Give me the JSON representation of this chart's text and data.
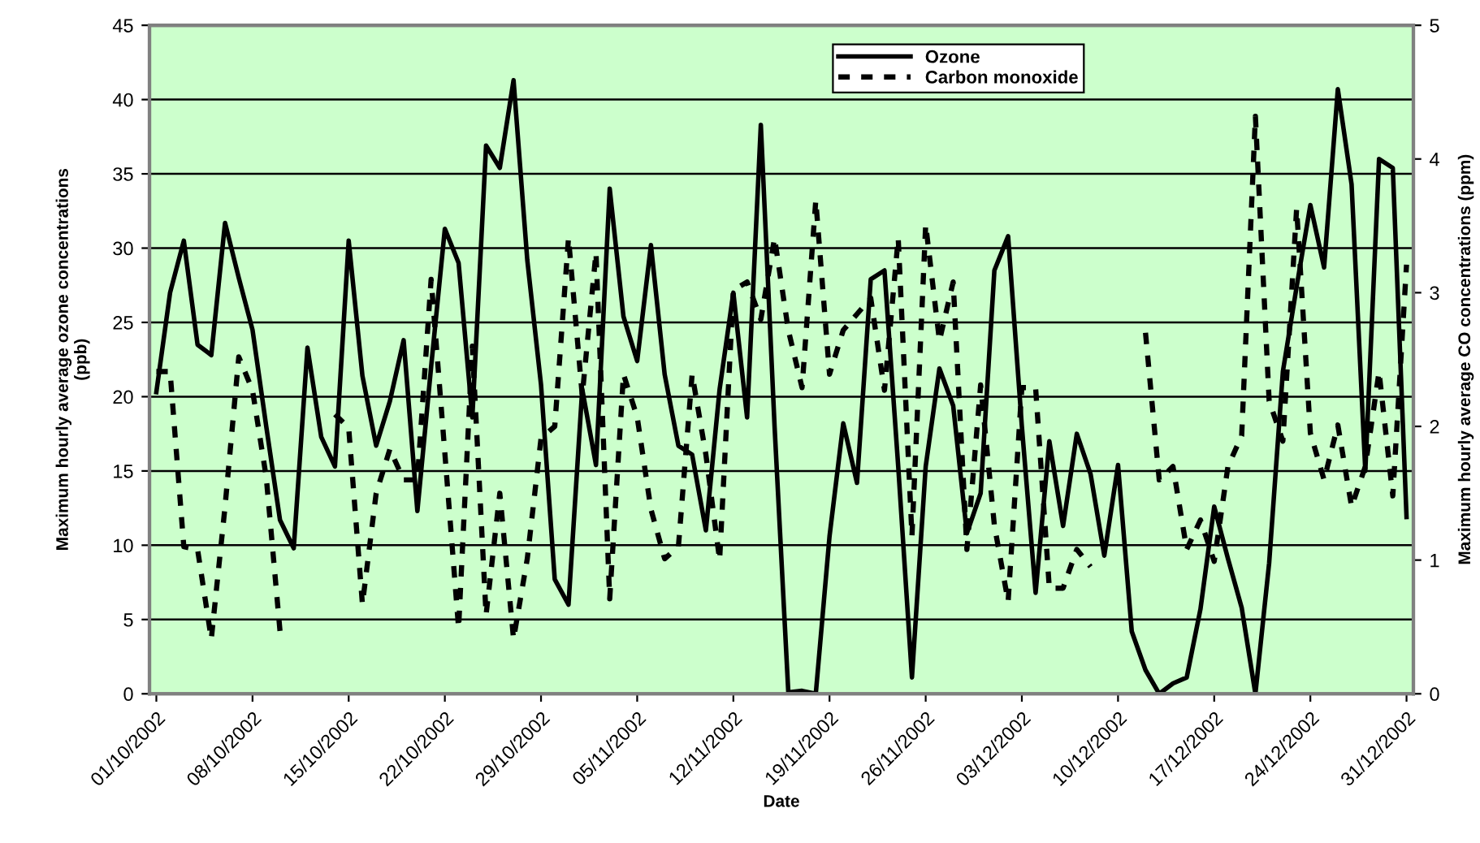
{
  "chart_data": {
    "type": "line",
    "xlabel": "Date",
    "ylabel": "Maximum hourly average ozone concentrations\n(ppb)",
    "y2label": "Maximum hourly average CO concentrations (ppm)",
    "x": [
      "2002-10-01",
      "2002-10-02",
      "2002-10-03",
      "2002-10-04",
      "2002-10-05",
      "2002-10-06",
      "2002-10-07",
      "2002-10-08",
      "2002-10-09",
      "2002-10-10",
      "2002-10-11",
      "2002-10-12",
      "2002-10-13",
      "2002-10-14",
      "2002-10-15",
      "2002-10-16",
      "2002-10-17",
      "2002-10-18",
      "2002-10-19",
      "2002-10-20",
      "2002-10-21",
      "2002-10-22",
      "2002-10-23",
      "2002-10-24",
      "2002-10-25",
      "2002-10-26",
      "2002-10-27",
      "2002-10-28",
      "2002-10-29",
      "2002-10-30",
      "2002-10-31",
      "2002-11-01",
      "2002-11-02",
      "2002-11-03",
      "2002-11-04",
      "2002-11-05",
      "2002-11-06",
      "2002-11-07",
      "2002-11-08",
      "2002-11-09",
      "2002-11-10",
      "2002-11-11",
      "2002-11-12",
      "2002-11-13",
      "2002-11-14",
      "2002-11-15",
      "2002-11-16",
      "2002-11-17",
      "2002-11-18",
      "2002-11-19",
      "2002-11-20",
      "2002-11-21",
      "2002-11-22",
      "2002-11-23",
      "2002-11-24",
      "2002-11-25",
      "2002-11-26",
      "2002-11-27",
      "2002-11-28",
      "2002-11-29",
      "2002-11-30",
      "2002-12-01",
      "2002-12-02",
      "2002-12-03",
      "2002-12-04",
      "2002-12-05",
      "2002-12-06",
      "2002-12-07",
      "2002-12-08",
      "2002-12-09",
      "2002-12-10",
      "2002-12-11",
      "2002-12-12",
      "2002-12-13",
      "2002-12-14",
      "2002-12-15",
      "2002-12-16",
      "2002-12-17",
      "2002-12-18",
      "2002-12-19",
      "2002-12-20",
      "2002-12-21",
      "2002-12-22",
      "2002-12-23",
      "2002-12-24",
      "2002-12-25",
      "2002-12-26",
      "2002-12-27",
      "2002-12-28",
      "2002-12-29",
      "2002-12-30",
      "2002-12-31"
    ],
    "series": [
      {
        "name": "Ozone",
        "color": "#000000",
        "line_style": "solid",
        "values": [
          20.3,
          27.0,
          30.5,
          23.5,
          22.8,
          31.7,
          28.0,
          24.5,
          18.0,
          11.7,
          9.8,
          23.3,
          17.3,
          15.3,
          30.5,
          21.4,
          16.7,
          19.7,
          23.8,
          12.3,
          22.0,
          31.3,
          29.0,
          18.6,
          36.9,
          35.4,
          41.3,
          29.2,
          20.8,
          7.7,
          6.0,
          20.5,
          15.4,
          34.0,
          25.4,
          22.4,
          30.2,
          21.5,
          16.7,
          16.1,
          11.0,
          20.5,
          27.0,
          18.6,
          38.3,
          18.0,
          0.1,
          0.2,
          0,
          10.6,
          18.2,
          14.2,
          27.9,
          28.5,
          15.3,
          1.1,
          15.3,
          21.9,
          19.4,
          10.8,
          13.5,
          28.5,
          30.8,
          18.0,
          6.8,
          17.0,
          11.3,
          17.5,
          14.8,
          9.3,
          15.4,
          4.2,
          1.6,
          0,
          0.7,
          1.1,
          5.7,
          12.6,
          9.1,
          5.8,
          0,
          8.8,
          21.7,
          27.4,
          32.9,
          28.7,
          40.7,
          34.3,
          15.0,
          36.0,
          35.4,
          11.9
        ]
      },
      {
        "name": "Carbon monoxide",
        "color": "#000000",
        "line_style": "dashed",
        "axis": "y2",
        "values": [
          2.41,
          2.41,
          1.1,
          1.08,
          0.41,
          1.4,
          2.52,
          2.27,
          1.62,
          0.47,
          null,
          null,
          null,
          2.09,
          1.99,
          0.67,
          1.5,
          1.83,
          1.6,
          1.6,
          3.1,
          1.8,
          0.49,
          2.6,
          0.59,
          1.5,
          0.41,
          1.01,
          1.91,
          2.0,
          3.41,
          2.23,
          3.3,
          0.71,
          2.39,
          2.07,
          1.38,
          1.01,
          1.1,
          2.39,
          1.79,
          1.0,
          3.02,
          3.08,
          2.8,
          3.41,
          2.72,
          2.29,
          3.69,
          2.39,
          2.72,
          2.84,
          2.96,
          2.27,
          3.41,
          1.18,
          3.51,
          2.64,
          3.08,
          1.08,
          2.31,
          1.26,
          0.69,
          2.29,
          2.29,
          0.79,
          0.79,
          1.08,
          0.95,
          null,
          null,
          null,
          2.7,
          1.6,
          1.7,
          1.08,
          1.3,
          0.99,
          1.7,
          1.93,
          4.32,
          2.19,
          1.89,
          3.63,
          1.95,
          1.6,
          2.01,
          1.4,
          1.7,
          2.41,
          1.48,
          3.21
        ]
      }
    ],
    "xlim": [
      "2002-09-30T12:00",
      "2002-12-31T12:00"
    ],
    "xticks": [
      {
        "value": "2002-10-01",
        "label": "01/10/2002"
      },
      {
        "value": "2002-10-08",
        "label": "08/10/2002"
      },
      {
        "value": "2002-10-15",
        "label": "15/10/2002"
      },
      {
        "value": "2002-10-22",
        "label": "22/10/2002"
      },
      {
        "value": "2002-10-29",
        "label": "29/10/2002"
      },
      {
        "value": "2002-11-05",
        "label": "05/11/2002"
      },
      {
        "value": "2002-11-12",
        "label": "12/11/2002"
      },
      {
        "value": "2002-11-19",
        "label": "19/11/2002"
      },
      {
        "value": "2002-11-26",
        "label": "26/11/2002"
      },
      {
        "value": "2002-12-03",
        "label": "03/12/2002"
      },
      {
        "value": "2002-12-10",
        "label": "10/12/2002"
      },
      {
        "value": "2002-12-17",
        "label": "17/12/2002"
      },
      {
        "value": "2002-12-24",
        "label": "24/12/2002"
      },
      {
        "value": "2002-12-31",
        "label": "31/12/2002"
      }
    ],
    "ylim": [
      0,
      45
    ],
    "yticks": [
      0,
      5,
      10,
      15,
      20,
      25,
      30,
      35,
      40,
      45
    ],
    "y2lim": [
      0,
      5
    ],
    "y2ticks": [
      0,
      1,
      2,
      3,
      4,
      5
    ],
    "grid": "y",
    "legend": "top"
  }
}
